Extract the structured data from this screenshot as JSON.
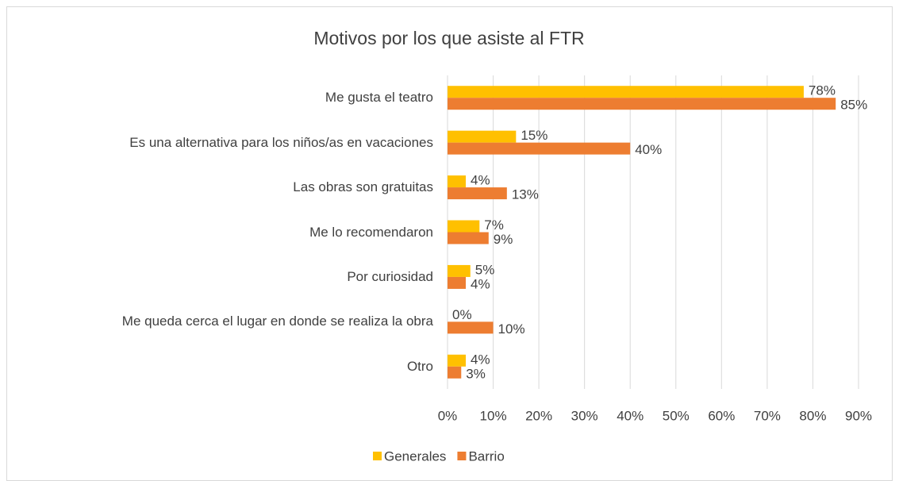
{
  "chart_data": {
    "type": "hbar",
    "title": "Motivos por los que asiste al FTR",
    "categories": [
      "Me gusta el teatro",
      "Es una alternativa para los niños/as en vacaciones",
      "Las obras son gratuitas",
      "Me lo recomendaron",
      "Por curiosidad",
      "Me queda cerca el lugar en donde se realiza la obra",
      "Otro"
    ],
    "series": [
      {
        "name": "Generales",
        "color": "#ffc000",
        "values": [
          78,
          15,
          4,
          7,
          5,
          0,
          4
        ],
        "value_labels": [
          "78%",
          "15%",
          "4%",
          "7%",
          "5%",
          "0%",
          "4%"
        ]
      },
      {
        "name": "Barrio",
        "color": "#ed7d31",
        "values": [
          85,
          40,
          13,
          9,
          4,
          10,
          3
        ],
        "value_labels": [
          "85%",
          "40%",
          "13%",
          "9%",
          "4%",
          "10%",
          "3%"
        ]
      }
    ],
    "xlim": [
      0,
      90
    ],
    "xticks": [
      {
        "value": 0,
        "label": "0%"
      },
      {
        "value": 10,
        "label": "10%"
      },
      {
        "value": 20,
        "label": "20%"
      },
      {
        "value": 30,
        "label": "30%"
      },
      {
        "value": 40,
        "label": "40%"
      },
      {
        "value": 50,
        "label": "50%"
      },
      {
        "value": 60,
        "label": "60%"
      },
      {
        "value": 70,
        "label": "70%"
      },
      {
        "value": 80,
        "label": "80%"
      },
      {
        "value": 90,
        "label": "90%"
      }
    ],
    "grid": true,
    "legend": "bottom"
  }
}
